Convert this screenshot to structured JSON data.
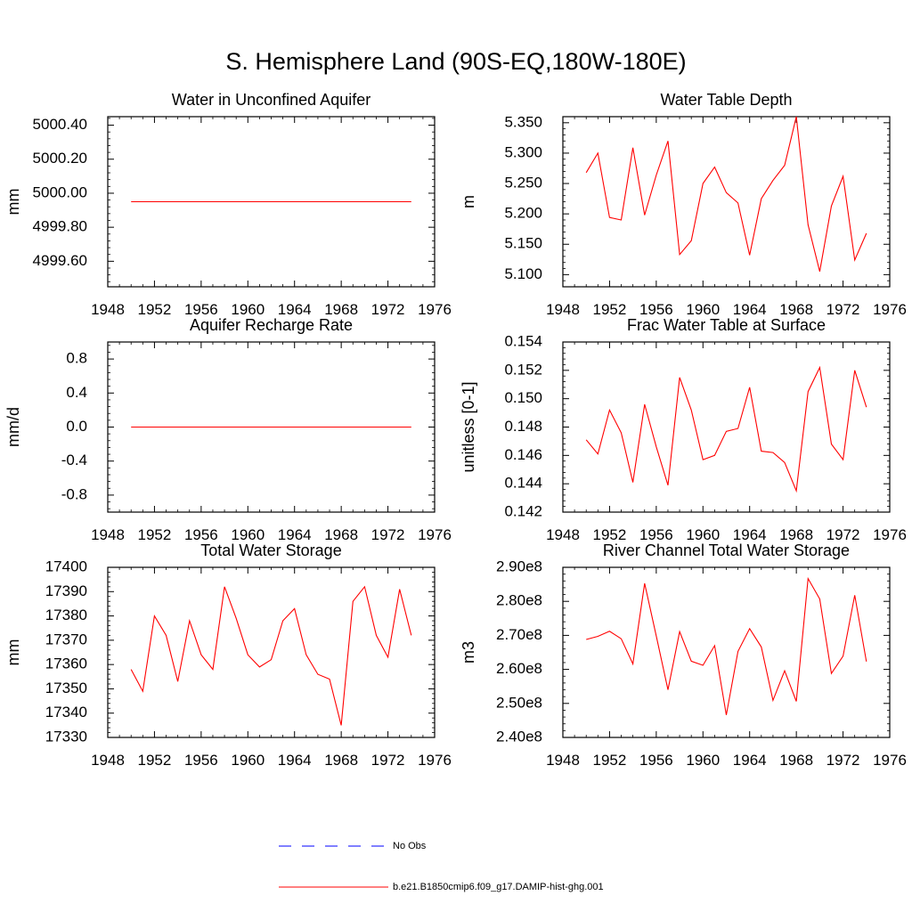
{
  "title": "S. Hemisphere Land (90S-EQ,180W-180E)",
  "colors": {
    "model": "#ff0000",
    "obs": "#0000ff",
    "frame": "#000000"
  },
  "legend": [
    {
      "label": "No Obs",
      "color": "#0000ff",
      "dash": "dashed"
    },
    {
      "label": "b.e21.B1850cmip6.f09_g17.DAMIP-hist-ghg.001",
      "color": "#ff0000",
      "dash": "solid"
    }
  ],
  "chart_data": [
    {
      "type": "line",
      "title": "Water in Unconfined Aquifer",
      "ylabel": "mm",
      "xlim": [
        1948,
        1976
      ],
      "xticks": [
        1948,
        1952,
        1956,
        1960,
        1964,
        1968,
        1972,
        1976
      ],
      "ylim": [
        4999.45,
        5000.45
      ],
      "yticks": [
        4999.6,
        4999.8,
        5000.0,
        5000.2,
        5000.4
      ],
      "ytick_labels": [
        "4999.60",
        "4999.80",
        "5000.00",
        "5000.20",
        "5000.40"
      ],
      "x": [
        1950,
        1974
      ],
      "series": [
        {
          "values": [
            4999.95,
            4999.95
          ]
        }
      ]
    },
    {
      "type": "line",
      "title": "Water Table Depth",
      "ylabel": "m",
      "xlim": [
        1948,
        1976
      ],
      "xticks": [
        1948,
        1952,
        1956,
        1960,
        1964,
        1968,
        1972,
        1976
      ],
      "ylim": [
        5.08,
        5.36
      ],
      "yticks": [
        5.1,
        5.15,
        5.2,
        5.25,
        5.3,
        5.35
      ],
      "ytick_labels": [
        "5.100",
        "5.150",
        "5.200",
        "5.250",
        "5.300",
        "5.350"
      ],
      "x": [
        1950,
        1951,
        1952,
        1953,
        1954,
        1955,
        1956,
        1957,
        1958,
        1959,
        1960,
        1961,
        1962,
        1963,
        1964,
        1965,
        1966,
        1967,
        1968,
        1969,
        1970,
        1971,
        1972,
        1973,
        1974
      ],
      "series": [
        {
          "values": [
            5.268,
            5.3,
            5.194,
            5.19,
            5.309,
            5.198,
            5.264,
            5.32,
            5.133,
            5.156,
            5.25,
            5.277,
            5.235,
            5.218,
            5.132,
            5.225,
            5.255,
            5.28,
            5.36,
            5.182,
            5.105,
            5.213,
            5.262,
            5.124,
            5.168
          ]
        }
      ]
    },
    {
      "type": "line",
      "title": "Aquifer Recharge Rate",
      "ylabel": "mm/d",
      "xlim": [
        1948,
        1976
      ],
      "xticks": [
        1948,
        1952,
        1956,
        1960,
        1964,
        1968,
        1972,
        1976
      ],
      "ylim": [
        -1.0,
        1.0
      ],
      "yticks": [
        -0.8,
        -0.4,
        0.0,
        0.4,
        0.8
      ],
      "ytick_labels": [
        "-0.8",
        "-0.4",
        "0.0",
        "0.4",
        "0.8"
      ],
      "x": [
        1950,
        1974
      ],
      "series": [
        {
          "values": [
            0.0,
            0.0
          ]
        }
      ]
    },
    {
      "type": "line",
      "title": "Frac Water Table at Surface",
      "ylabel": "unitless [0-1]",
      "xlim": [
        1948,
        1976
      ],
      "xticks": [
        1948,
        1952,
        1956,
        1960,
        1964,
        1968,
        1972,
        1976
      ],
      "ylim": [
        0.142,
        0.154
      ],
      "yticks": [
        0.142,
        0.144,
        0.146,
        0.148,
        0.15,
        0.152,
        0.154
      ],
      "ytick_labels": [
        "0.142",
        "0.144",
        "0.146",
        "0.148",
        "0.150",
        "0.152",
        "0.154"
      ],
      "x": [
        1950,
        1951,
        1952,
        1953,
        1954,
        1955,
        1956,
        1957,
        1958,
        1959,
        1960,
        1961,
        1962,
        1963,
        1964,
        1965,
        1966,
        1967,
        1968,
        1969,
        1970,
        1971,
        1972,
        1973,
        1974
      ],
      "series": [
        {
          "values": [
            0.1471,
            0.1461,
            0.1492,
            0.1476,
            0.1441,
            0.1496,
            0.1466,
            0.1439,
            0.1515,
            0.1492,
            0.1457,
            0.146,
            0.1477,
            0.1479,
            0.1508,
            0.1463,
            0.1462,
            0.1455,
            0.1435,
            0.1505,
            0.1522,
            0.1468,
            0.1457,
            0.152,
            0.1494
          ]
        }
      ]
    },
    {
      "type": "line",
      "title": "Total Water Storage",
      "ylabel": "mm",
      "xlim": [
        1948,
        1976
      ],
      "xticks": [
        1948,
        1952,
        1956,
        1960,
        1964,
        1968,
        1972,
        1976
      ],
      "ylim": [
        17330,
        17400
      ],
      "yticks": [
        17330,
        17340,
        17350,
        17360,
        17370,
        17380,
        17390,
        17400
      ],
      "ytick_labels": [
        "17330",
        "17340",
        "17350",
        "17360",
        "17370",
        "17380",
        "17390",
        "17400"
      ],
      "x": [
        1950,
        1951,
        1952,
        1953,
        1954,
        1955,
        1956,
        1957,
        1958,
        1959,
        1960,
        1961,
        1962,
        1963,
        1964,
        1965,
        1966,
        1967,
        1968,
        1969,
        1970,
        1971,
        1972,
        1973,
        1974
      ],
      "series": [
        {
          "values": [
            17358,
            17349,
            17380,
            17372,
            17353,
            17378,
            17364,
            17358,
            17392,
            17379,
            17364,
            17359,
            17362,
            17378,
            17383,
            17364,
            17356,
            17354,
            17335,
            17386,
            17392,
            17372,
            17363,
            17391,
            17372
          ]
        }
      ]
    },
    {
      "type": "line",
      "title": "River Channel Total Water Storage",
      "ylabel": "m3",
      "xlim": [
        1948,
        1976
      ],
      "xticks": [
        1948,
        1952,
        1956,
        1960,
        1964,
        1968,
        1972,
        1976
      ],
      "ylim": [
        240000000,
        290000000
      ],
      "yticks": [
        240000000,
        250000000,
        260000000,
        270000000,
        280000000,
        290000000
      ],
      "ytick_labels": [
        "2.40e8",
        "2.50e8",
        "2.60e8",
        "2.70e8",
        "2.80e8",
        "2.90e8"
      ],
      "x": [
        1950,
        1951,
        1952,
        1953,
        1954,
        1955,
        1956,
        1957,
        1958,
        1959,
        1960,
        1961,
        1962,
        1963,
        1964,
        1965,
        1966,
        1967,
        1968,
        1969,
        1970,
        1971,
        1972,
        1973,
        1974
      ],
      "series": [
        {
          "values": [
            268800000,
            269700000,
            271200000,
            269000000,
            261600000,
            285300000,
            269800000,
            254000000,
            271100000,
            262400000,
            261200000,
            267000000,
            246600000,
            265300000,
            272000000,
            266600000,
            250900000,
            259600000,
            250600000,
            286700000,
            280700000,
            258800000,
            263900000,
            281800000,
            262300000
          ]
        }
      ]
    }
  ]
}
